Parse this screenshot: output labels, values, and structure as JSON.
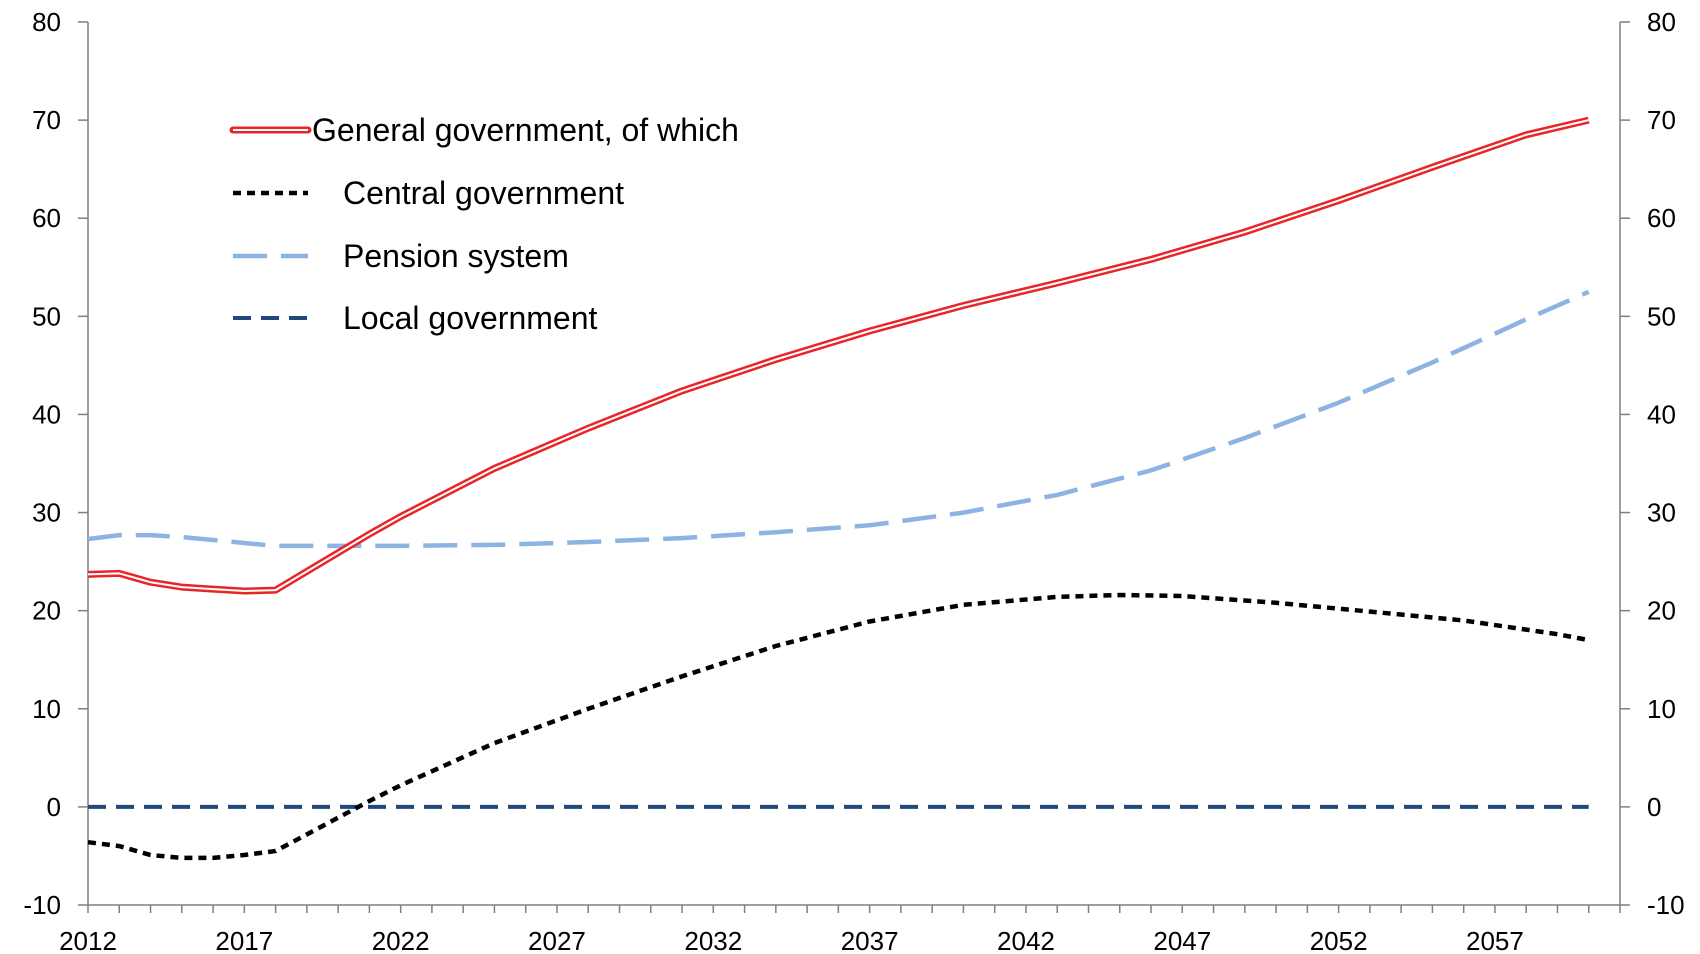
{
  "chart_data": {
    "type": "line",
    "x_ticks": [
      2012,
      2017,
      2022,
      2027,
      2032,
      2037,
      2042,
      2047,
      2052,
      2057
    ],
    "xlim": [
      2012,
      2061
    ],
    "ylim": [
      -10,
      80
    ],
    "y_ticks": [
      -10,
      0,
      10,
      20,
      30,
      40,
      50,
      60,
      70,
      80
    ],
    "y_axes": "left and right (identical scale)",
    "grid": false,
    "legend_position": "top-left",
    "colors": {
      "general": "#e8262a",
      "central": "#000000",
      "pension": "#8db3e2",
      "local": "#1f497d"
    },
    "series": [
      {
        "key": "general",
        "name": "General government, of which",
        "style": "double-line",
        "x": [
          2012,
          2013,
          2014,
          2015,
          2016,
          2017,
          2018,
          2019,
          2020,
          2021,
          2022,
          2025,
          2028,
          2031,
          2034,
          2037,
          2040,
          2043,
          2046,
          2049,
          2052,
          2055,
          2058,
          2060
        ],
        "values": [
          23.7,
          23.8,
          22.9,
          22.4,
          22.2,
          22.0,
          22.1,
          24.0,
          25.9,
          27.8,
          29.6,
          34.5,
          38.6,
          42.4,
          45.6,
          48.5,
          51.1,
          53.4,
          55.8,
          58.6,
          61.8,
          65.2,
          68.5,
          70.0
        ]
      },
      {
        "key": "central",
        "name": "Central government",
        "style": "dotted",
        "x": [
          2012,
          2013,
          2014,
          2015,
          2016,
          2017,
          2018,
          2019,
          2020,
          2021,
          2022,
          2025,
          2028,
          2031,
          2034,
          2037,
          2040,
          2043,
          2045,
          2047,
          2050,
          2053,
          2056,
          2059,
          2060
        ],
        "values": [
          -3.6,
          -4.0,
          -4.9,
          -5.2,
          -5.2,
          -4.9,
          -4.5,
          -2.8,
          -1.1,
          0.6,
          2.2,
          6.5,
          10.0,
          13.3,
          16.4,
          18.9,
          20.6,
          21.4,
          21.6,
          21.5,
          20.8,
          19.9,
          19.0,
          17.6,
          17.0
        ]
      },
      {
        "key": "pension",
        "name": "Pension system",
        "style": "long-dash",
        "x": [
          2012,
          2013,
          2014,
          2015,
          2016,
          2017,
          2018,
          2019,
          2022,
          2025,
          2028,
          2031,
          2034,
          2037,
          2040,
          2043,
          2046,
          2049,
          2052,
          2055,
          2058,
          2060
        ],
        "values": [
          27.3,
          27.7,
          27.7,
          27.5,
          27.2,
          26.9,
          26.6,
          26.6,
          26.6,
          26.7,
          27.0,
          27.4,
          28.0,
          28.7,
          30.0,
          31.8,
          34.3,
          37.6,
          41.2,
          45.3,
          49.7,
          52.5
        ]
      },
      {
        "key": "local",
        "name": "Local government",
        "style": "dash",
        "x": [
          2012,
          2060
        ],
        "values": [
          0,
          0
        ]
      }
    ]
  }
}
